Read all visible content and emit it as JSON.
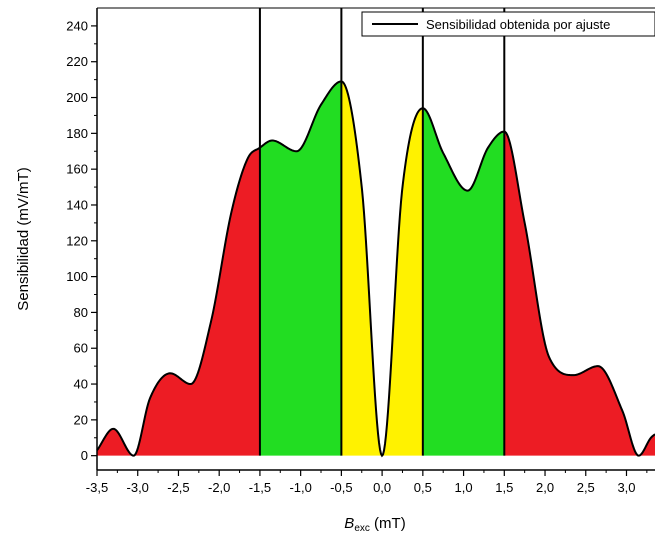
{
  "chart_data": {
    "type": "area",
    "xlabel_main": "B",
    "xlabel_sub": "exc",
    "xlabel_unit": " (mT)",
    "ylabel": "Sensibilidad (mV/mT)",
    "legend": "Sensibilidad obtenida por ajuste",
    "legend_position": "top-right",
    "xlim": [
      -3.5,
      3.35
    ],
    "ylim": [
      -8,
      250
    ],
    "xticks": [
      -3.5,
      -3.0,
      -2.5,
      -2.0,
      -1.5,
      -1.0,
      -0.5,
      0.0,
      0.5,
      1.0,
      1.5,
      2.0,
      2.5,
      3.0
    ],
    "xtick_labels": [
      "-3,5",
      "-3,0",
      "-2,5",
      "-2,0",
      "-1,5",
      "-1,0",
      "-0,5",
      "0,0",
      "0,5",
      "1,0",
      "1,5",
      "2,0",
      "2,5",
      "3,0"
    ],
    "yticks": [
      0,
      20,
      40,
      60,
      80,
      100,
      120,
      140,
      160,
      180,
      200,
      220,
      240
    ],
    "ytick_labels": [
      "0",
      "20",
      "40",
      "60",
      "80",
      "100",
      "120",
      "140",
      "160",
      "180",
      "200",
      "220",
      "240"
    ],
    "vertical_lines": [
      -1.5,
      -0.5,
      0.5,
      1.5
    ],
    "regions": [
      {
        "from": -3.5,
        "to": -1.5,
        "color": "#ED1C24"
      },
      {
        "from": -1.5,
        "to": -0.5,
        "color": "#22DD22"
      },
      {
        "from": -0.5,
        "to": 0.5,
        "color": "#FFF200"
      },
      {
        "from": 0.5,
        "to": 1.5,
        "color": "#22DD22"
      },
      {
        "from": 1.5,
        "to": 3.35,
        "color": "#ED1C24"
      }
    ],
    "series": [
      {
        "name": "Sensibilidad obtenida por ajuste",
        "x": [
          -3.5,
          -3.3,
          -3.05,
          -2.85,
          -2.6,
          -2.35,
          -2.1,
          -1.85,
          -1.65,
          -1.5,
          -1.35,
          -1.05,
          -0.75,
          -0.5,
          -0.25,
          0.0,
          0.25,
          0.5,
          0.75,
          1.05,
          1.3,
          1.5,
          1.75,
          2.05,
          2.35,
          2.65,
          2.95,
          3.15,
          3.3,
          3.35
        ],
        "y": [
          3,
          15,
          0,
          32,
          46,
          40,
          75,
          136,
          166,
          172,
          176,
          170,
          196,
          209,
          150,
          0,
          150,
          194,
          169,
          148,
          172,
          181,
          130,
          55,
          45,
          50,
          25,
          0,
          10,
          12
        ]
      }
    ]
  }
}
